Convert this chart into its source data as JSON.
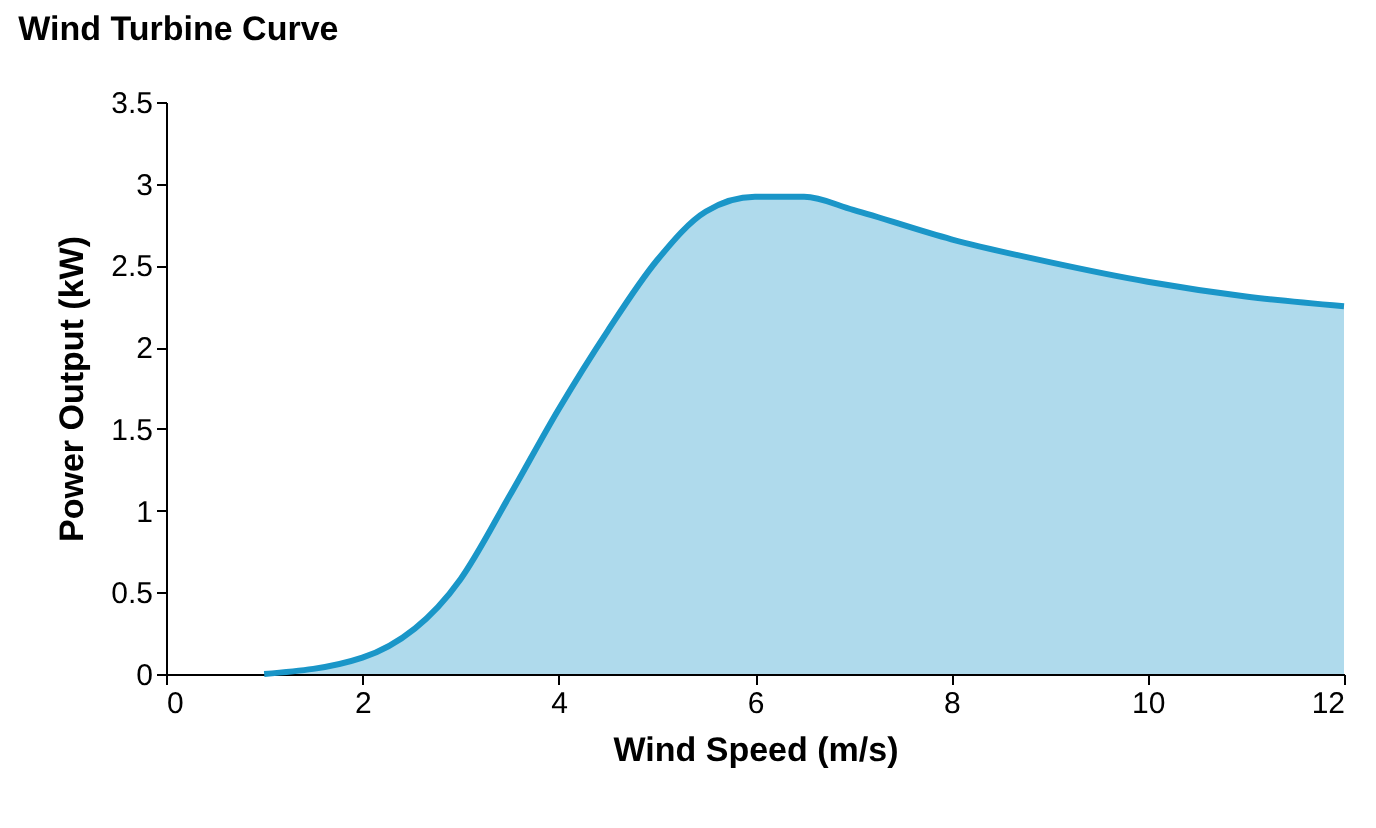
{
  "chart_data": {
    "type": "area",
    "title": "Wind Turbine Curve",
    "xlabel": "Wind Speed (m/s)",
    "ylabel": "Power Output (kW)",
    "x": [
      1,
      2,
      3,
      3.5,
      4,
      4.5,
      5,
      5.5,
      6,
      6.5,
      7,
      8,
      9,
      10,
      11,
      12
    ],
    "series": [
      {
        "color": "#1a96c8",
        "values": [
          0,
          0.1,
          0.58,
          1.09,
          1.62,
          2.1,
          2.53,
          2.83,
          2.92,
          2.92,
          2.84,
          2.66,
          2.52,
          2.4,
          2.31,
          2.25
        ]
      }
    ],
    "xlim": [
      0,
      12
    ],
    "xticks": [
      0,
      2,
      4,
      6,
      8,
      10,
      12
    ],
    "ylim": [
      0,
      3.5
    ],
    "yticks": [
      0,
      0.5,
      1,
      1.5,
      2,
      2.5,
      3,
      3.5
    ],
    "grid": false
  }
}
